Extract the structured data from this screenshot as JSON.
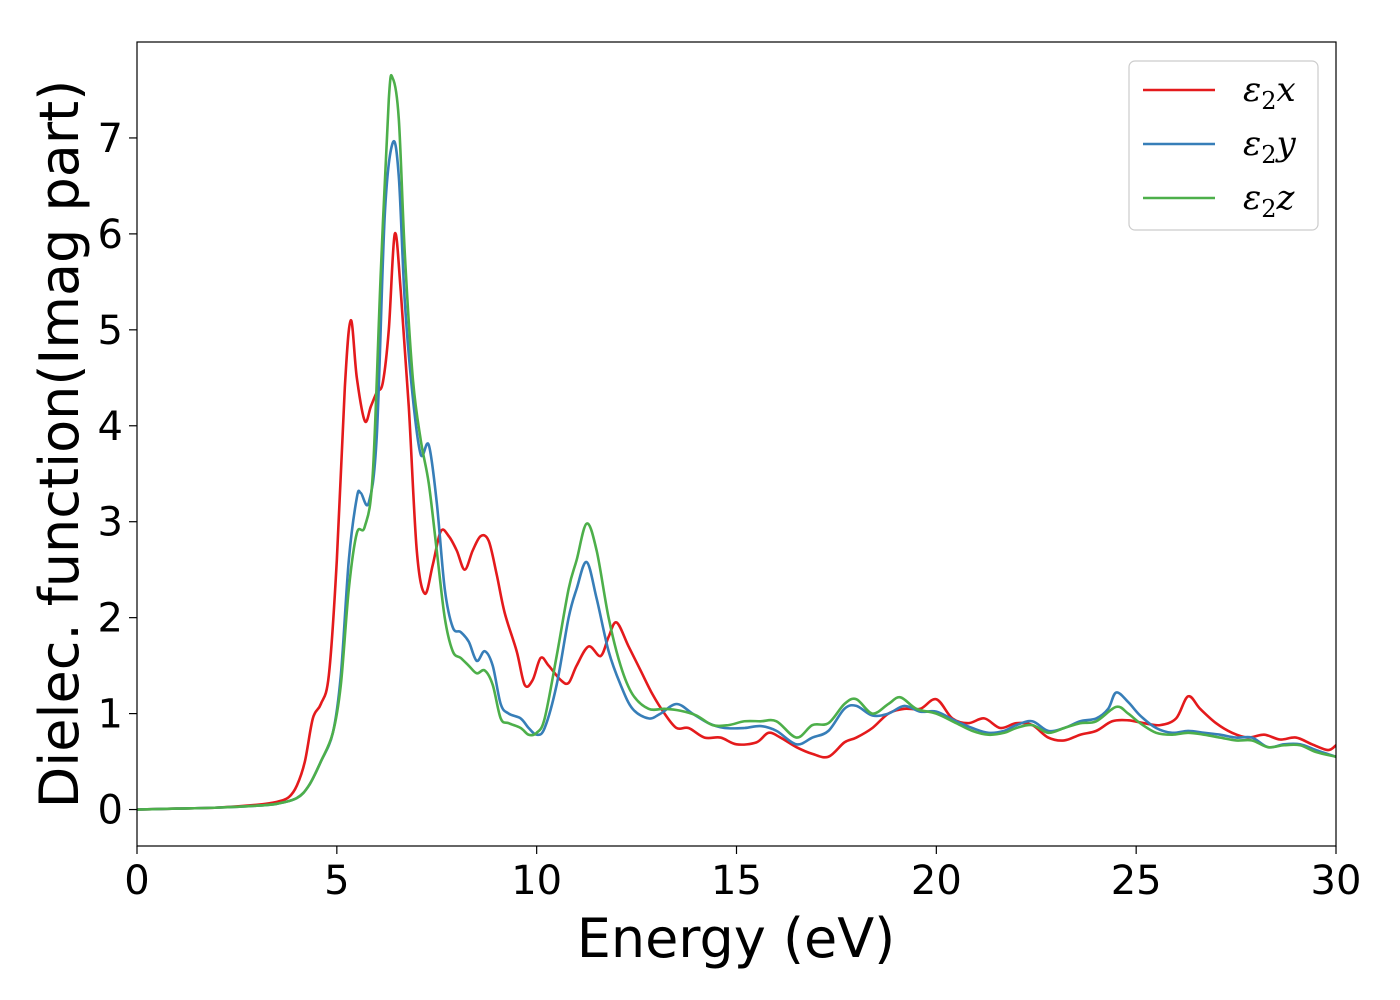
{
  "chart_data": {
    "type": "line",
    "xlabel": "Energy (eV)",
    "ylabel": "Dielec. function(Imag part)",
    "xlim": [
      0,
      30
    ],
    "ylim": [
      -0.38,
      8.0
    ],
    "xticks": [
      0,
      5,
      10,
      15,
      20,
      25,
      30
    ],
    "yticks": [
      0,
      1,
      2,
      3,
      4,
      5,
      6,
      7
    ],
    "grid": false,
    "legend_position": "top-right",
    "series": [
      {
        "name": "ε2x",
        "legend": {
          "base": "ε",
          "sub": "2",
          "comp": "x"
        },
        "color": "#e41a1c",
        "points": [
          [
            0,
            0
          ],
          [
            1,
            0.01
          ],
          [
            2,
            0.02
          ],
          [
            3,
            0.05
          ],
          [
            3.5,
            0.08
          ],
          [
            3.8,
            0.13
          ],
          [
            4.0,
            0.25
          ],
          [
            4.2,
            0.5
          ],
          [
            4.4,
            0.95
          ],
          [
            4.6,
            1.1
          ],
          [
            4.8,
            1.4
          ],
          [
            5.0,
            2.6
          ],
          [
            5.2,
            4.4
          ],
          [
            5.35,
            5.1
          ],
          [
            5.5,
            4.5
          ],
          [
            5.7,
            4.05
          ],
          [
            5.85,
            4.2
          ],
          [
            6.0,
            4.35
          ],
          [
            6.15,
            4.45
          ],
          [
            6.3,
            5.0
          ],
          [
            6.45,
            6.0
          ],
          [
            6.6,
            5.4
          ],
          [
            6.8,
            4.2
          ],
          [
            7.0,
            2.7
          ],
          [
            7.2,
            2.25
          ],
          [
            7.4,
            2.55
          ],
          [
            7.6,
            2.9
          ],
          [
            7.8,
            2.85
          ],
          [
            8.0,
            2.7
          ],
          [
            8.2,
            2.5
          ],
          [
            8.4,
            2.7
          ],
          [
            8.6,
            2.85
          ],
          [
            8.8,
            2.8
          ],
          [
            9.0,
            2.45
          ],
          [
            9.2,
            2.05
          ],
          [
            9.5,
            1.65
          ],
          [
            9.7,
            1.3
          ],
          [
            9.9,
            1.35
          ],
          [
            10.1,
            1.58
          ],
          [
            10.3,
            1.5
          ],
          [
            10.6,
            1.35
          ],
          [
            10.8,
            1.32
          ],
          [
            11.0,
            1.5
          ],
          [
            11.3,
            1.7
          ],
          [
            11.6,
            1.6
          ],
          [
            11.8,
            1.8
          ],
          [
            12.0,
            1.95
          ],
          [
            12.3,
            1.7
          ],
          [
            12.6,
            1.45
          ],
          [
            12.9,
            1.2
          ],
          [
            13.2,
            1.0
          ],
          [
            13.5,
            0.85
          ],
          [
            13.8,
            0.85
          ],
          [
            14.2,
            0.75
          ],
          [
            14.6,
            0.75
          ],
          [
            15.0,
            0.68
          ],
          [
            15.5,
            0.7
          ],
          [
            15.8,
            0.8
          ],
          [
            16.1,
            0.75
          ],
          [
            16.5,
            0.65
          ],
          [
            16.9,
            0.58
          ],
          [
            17.3,
            0.55
          ],
          [
            17.7,
            0.7
          ],
          [
            18.0,
            0.75
          ],
          [
            18.4,
            0.85
          ],
          [
            18.8,
            1.0
          ],
          [
            19.2,
            1.05
          ],
          [
            19.6,
            1.05
          ],
          [
            20.0,
            1.15
          ],
          [
            20.4,
            0.95
          ],
          [
            20.8,
            0.9
          ],
          [
            21.2,
            0.95
          ],
          [
            21.6,
            0.85
          ],
          [
            22.0,
            0.9
          ],
          [
            22.4,
            0.88
          ],
          [
            22.8,
            0.75
          ],
          [
            23.2,
            0.72
          ],
          [
            23.6,
            0.78
          ],
          [
            24.0,
            0.82
          ],
          [
            24.4,
            0.92
          ],
          [
            24.8,
            0.93
          ],
          [
            25.2,
            0.9
          ],
          [
            25.6,
            0.88
          ],
          [
            26.0,
            0.95
          ],
          [
            26.3,
            1.18
          ],
          [
            26.6,
            1.05
          ],
          [
            27.0,
            0.9
          ],
          [
            27.4,
            0.8
          ],
          [
            27.8,
            0.75
          ],
          [
            28.2,
            0.78
          ],
          [
            28.6,
            0.73
          ],
          [
            29.0,
            0.75
          ],
          [
            29.4,
            0.68
          ],
          [
            29.8,
            0.62
          ],
          [
            30.0,
            0.67
          ]
        ]
      },
      {
        "name": "ε2y",
        "legend": {
          "base": "ε",
          "sub": "2",
          "comp": "y"
        },
        "color": "#377eb8",
        "points": [
          [
            0,
            0
          ],
          [
            1,
            0.01
          ],
          [
            2,
            0.02
          ],
          [
            3,
            0.04
          ],
          [
            3.5,
            0.06
          ],
          [
            4.0,
            0.12
          ],
          [
            4.3,
            0.25
          ],
          [
            4.6,
            0.5
          ],
          [
            4.9,
            0.8
          ],
          [
            5.1,
            1.4
          ],
          [
            5.3,
            2.6
          ],
          [
            5.5,
            3.25
          ],
          [
            5.6,
            3.3
          ],
          [
            5.8,
            3.2
          ],
          [
            6.0,
            3.9
          ],
          [
            6.2,
            6.2
          ],
          [
            6.4,
            6.95
          ],
          [
            6.55,
            6.6
          ],
          [
            6.7,
            5.3
          ],
          [
            6.9,
            4.3
          ],
          [
            7.1,
            3.7
          ],
          [
            7.3,
            3.8
          ],
          [
            7.5,
            3.2
          ],
          [
            7.7,
            2.3
          ],
          [
            7.9,
            1.9
          ],
          [
            8.1,
            1.85
          ],
          [
            8.3,
            1.75
          ],
          [
            8.5,
            1.55
          ],
          [
            8.7,
            1.65
          ],
          [
            8.9,
            1.5
          ],
          [
            9.1,
            1.1
          ],
          [
            9.3,
            1.0
          ],
          [
            9.6,
            0.95
          ],
          [
            9.8,
            0.85
          ],
          [
            10.0,
            0.78
          ],
          [
            10.2,
            0.85
          ],
          [
            10.5,
            1.3
          ],
          [
            10.8,
            2.0
          ],
          [
            11.0,
            2.3
          ],
          [
            11.25,
            2.58
          ],
          [
            11.5,
            2.2
          ],
          [
            11.8,
            1.65
          ],
          [
            12.1,
            1.3
          ],
          [
            12.4,
            1.05
          ],
          [
            12.8,
            0.95
          ],
          [
            13.1,
            1.0
          ],
          [
            13.5,
            1.1
          ],
          [
            13.9,
            1.0
          ],
          [
            14.3,
            0.9
          ],
          [
            14.7,
            0.85
          ],
          [
            15.2,
            0.85
          ],
          [
            15.6,
            0.87
          ],
          [
            16.0,
            0.82
          ],
          [
            16.5,
            0.68
          ],
          [
            16.9,
            0.75
          ],
          [
            17.3,
            0.82
          ],
          [
            17.7,
            1.05
          ],
          [
            18.0,
            1.08
          ],
          [
            18.4,
            0.98
          ],
          [
            18.8,
            1.0
          ],
          [
            19.2,
            1.08
          ],
          [
            19.6,
            1.02
          ],
          [
            20.0,
            1.02
          ],
          [
            20.5,
            0.92
          ],
          [
            20.9,
            0.85
          ],
          [
            21.3,
            0.8
          ],
          [
            21.7,
            0.82
          ],
          [
            22.0,
            0.88
          ],
          [
            22.4,
            0.92
          ],
          [
            22.8,
            0.82
          ],
          [
            23.2,
            0.85
          ],
          [
            23.6,
            0.92
          ],
          [
            24.0,
            0.95
          ],
          [
            24.3,
            1.05
          ],
          [
            24.5,
            1.22
          ],
          [
            24.8,
            1.12
          ],
          [
            25.1,
            0.98
          ],
          [
            25.5,
            0.85
          ],
          [
            25.9,
            0.8
          ],
          [
            26.3,
            0.82
          ],
          [
            26.7,
            0.8
          ],
          [
            27.1,
            0.78
          ],
          [
            27.5,
            0.75
          ],
          [
            27.9,
            0.75
          ],
          [
            28.3,
            0.65
          ],
          [
            28.7,
            0.68
          ],
          [
            29.1,
            0.68
          ],
          [
            29.5,
            0.62
          ],
          [
            30.0,
            0.55
          ]
        ]
      },
      {
        "name": "ε2z",
        "legend": {
          "base": "ε",
          "sub": "2",
          "comp": "z"
        },
        "color": "#4daf4a",
        "points": [
          [
            0,
            0
          ],
          [
            1,
            0.01
          ],
          [
            2,
            0.02
          ],
          [
            3,
            0.04
          ],
          [
            3.5,
            0.06
          ],
          [
            4.0,
            0.12
          ],
          [
            4.3,
            0.25
          ],
          [
            4.6,
            0.5
          ],
          [
            4.9,
            0.8
          ],
          [
            5.1,
            1.3
          ],
          [
            5.3,
            2.3
          ],
          [
            5.5,
            2.88
          ],
          [
            5.7,
            2.95
          ],
          [
            5.9,
            3.5
          ],
          [
            6.1,
            5.6
          ],
          [
            6.3,
            7.4
          ],
          [
            6.4,
            7.62
          ],
          [
            6.55,
            7.2
          ],
          [
            6.7,
            5.8
          ],
          [
            6.9,
            4.5
          ],
          [
            7.1,
            3.85
          ],
          [
            7.3,
            3.4
          ],
          [
            7.5,
            2.7
          ],
          [
            7.7,
            2.0
          ],
          [
            7.9,
            1.65
          ],
          [
            8.1,
            1.58
          ],
          [
            8.3,
            1.5
          ],
          [
            8.5,
            1.42
          ],
          [
            8.7,
            1.45
          ],
          [
            8.9,
            1.3
          ],
          [
            9.1,
            0.95
          ],
          [
            9.3,
            0.9
          ],
          [
            9.6,
            0.85
          ],
          [
            9.8,
            0.78
          ],
          [
            10.0,
            0.8
          ],
          [
            10.2,
            0.95
          ],
          [
            10.5,
            1.6
          ],
          [
            10.8,
            2.3
          ],
          [
            11.0,
            2.6
          ],
          [
            11.25,
            2.98
          ],
          [
            11.5,
            2.7
          ],
          [
            11.8,
            2.0
          ],
          [
            12.1,
            1.5
          ],
          [
            12.4,
            1.2
          ],
          [
            12.8,
            1.05
          ],
          [
            13.2,
            1.05
          ],
          [
            13.6,
            1.03
          ],
          [
            14.0,
            0.98
          ],
          [
            14.4,
            0.88
          ],
          [
            14.8,
            0.88
          ],
          [
            15.2,
            0.92
          ],
          [
            15.6,
            0.92
          ],
          [
            16.0,
            0.92
          ],
          [
            16.5,
            0.75
          ],
          [
            16.9,
            0.88
          ],
          [
            17.3,
            0.9
          ],
          [
            17.7,
            1.1
          ],
          [
            18.0,
            1.15
          ],
          [
            18.4,
            1.0
          ],
          [
            18.8,
            1.1
          ],
          [
            19.1,
            1.17
          ],
          [
            19.5,
            1.05
          ],
          [
            20.0,
            1.0
          ],
          [
            20.5,
            0.9
          ],
          [
            20.9,
            0.82
          ],
          [
            21.3,
            0.78
          ],
          [
            21.7,
            0.8
          ],
          [
            22.0,
            0.85
          ],
          [
            22.4,
            0.88
          ],
          [
            22.8,
            0.8
          ],
          [
            23.2,
            0.85
          ],
          [
            23.6,
            0.9
          ],
          [
            24.0,
            0.92
          ],
          [
            24.5,
            1.07
          ],
          [
            24.8,
            1.0
          ],
          [
            25.1,
            0.9
          ],
          [
            25.5,
            0.8
          ],
          [
            25.9,
            0.78
          ],
          [
            26.3,
            0.8
          ],
          [
            26.7,
            0.78
          ],
          [
            27.1,
            0.75
          ],
          [
            27.5,
            0.72
          ],
          [
            27.9,
            0.72
          ],
          [
            28.3,
            0.65
          ],
          [
            28.7,
            0.67
          ],
          [
            29.1,
            0.67
          ],
          [
            29.5,
            0.6
          ],
          [
            30.0,
            0.55
          ]
        ]
      }
    ]
  }
}
